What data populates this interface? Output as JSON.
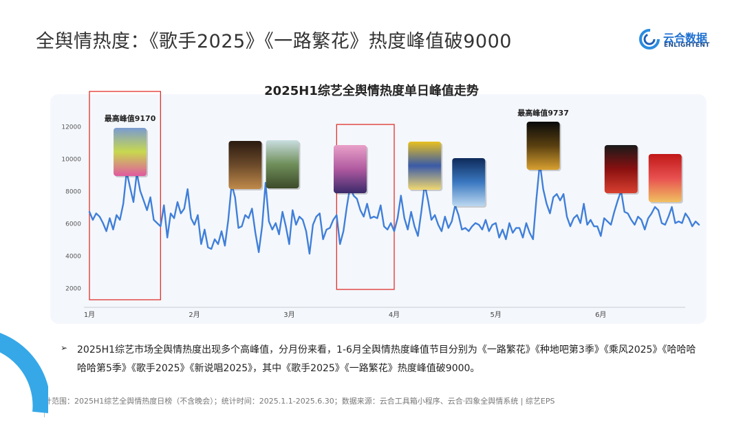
{
  "page": {
    "title": "全舆情热度：《歌手2025》《一路繁花》热度峰值破9000",
    "logo_cn": "云合数据",
    "logo_en": "ENLIGHTENT"
  },
  "chart_data": {
    "type": "line",
    "title": "2025H1综艺全舆情热度单日峰值走势",
    "xlabel": "",
    "ylabel": "",
    "y_ticks": [
      2000,
      4000,
      6000,
      8000,
      10000,
      12000
    ],
    "x_ticks": [
      "1月",
      "2月",
      "3月",
      "4月",
      "5月",
      "6月"
    ],
    "x_tick_days": [
      1,
      32,
      60,
      91,
      121,
      152
    ],
    "ylim": [
      1000,
      13000
    ],
    "xlim": [
      1,
      181
    ],
    "grid": false,
    "line_color": "#3f7fd9",
    "annotations": [
      {
        "label": "最高峰值9170",
        "day": 13
      },
      {
        "label": "最高峰值9737",
        "day": 135
      }
    ],
    "highlight_ranges": [
      [
        1,
        22
      ],
      [
        74,
        91
      ]
    ],
    "series": [
      {
        "name": "",
        "x": [
          1,
          2,
          3,
          4,
          5,
          6,
          7,
          8,
          9,
          10,
          11,
          12,
          13,
          14,
          15,
          16,
          17,
          18,
          19,
          20,
          21,
          22,
          23,
          24,
          25,
          26,
          27,
          28,
          29,
          30,
          31,
          32,
          33,
          34,
          35,
          36,
          37,
          38,
          39,
          40,
          41,
          42,
          43,
          44,
          45,
          46,
          47,
          48,
          49,
          50,
          51,
          52,
          53,
          54,
          55,
          56,
          57,
          58,
          59,
          60,
          61,
          62,
          63,
          64,
          65,
          66,
          67,
          68,
          69,
          70,
          71,
          72,
          73,
          74,
          75,
          76,
          77,
          78,
          79,
          80,
          81,
          82,
          83,
          84,
          85,
          86,
          87,
          88,
          89,
          90,
          91,
          92,
          93,
          94,
          95,
          96,
          97,
          98,
          99,
          100,
          101,
          102,
          103,
          104,
          105,
          106,
          107,
          108,
          109,
          110,
          111,
          112,
          113,
          114,
          115,
          116,
          117,
          118,
          119,
          120,
          121,
          122,
          123,
          124,
          125,
          126,
          127,
          128,
          129,
          130,
          131,
          132,
          133,
          134,
          135,
          136,
          137,
          138,
          139,
          140,
          141,
          142,
          143,
          144,
          145,
          146,
          147,
          148,
          149,
          150,
          151,
          152,
          153,
          154,
          155,
          156,
          157,
          158,
          159,
          160,
          161,
          162,
          163,
          164,
          165,
          166,
          167,
          168,
          169,
          170,
          171,
          172,
          173,
          174,
          175,
          176,
          177,
          178,
          179,
          180,
          181
        ],
        "values": [
          6700,
          6200,
          6600,
          6400,
          6000,
          5500,
          6300,
          5600,
          6500,
          6200,
          7200,
          9170,
          8200,
          7300,
          9100,
          8000,
          7400,
          6800,
          7600,
          6200,
          6000,
          5800,
          7100,
          5100,
          6600,
          6300,
          7300,
          6600,
          6900,
          8100,
          6300,
          5900,
          6500,
          4700,
          5600,
          4500,
          4400,
          5000,
          4700,
          5500,
          4600,
          6200,
          8400,
          7600,
          5700,
          5800,
          6500,
          6300,
          6900,
          5400,
          4200,
          5800,
          8500,
          6100,
          5600,
          6000,
          5300,
          6700,
          5800,
          4700,
          6800,
          5900,
          6400,
          6200,
          5500,
          4100,
          5900,
          6400,
          6600,
          5000,
          5600,
          5700,
          6200,
          6500,
          4700,
          5500,
          7000,
          8300,
          7700,
          7500,
          6800,
          6400,
          7200,
          6300,
          6400,
          6300,
          7100,
          5800,
          5600,
          6000,
          5500,
          6300,
          7700,
          6300,
          5600,
          6700,
          5800,
          5200,
          6700,
          8400,
          7400,
          6200,
          6500,
          5900,
          5500,
          6400,
          5700,
          6100,
          7100,
          6500,
          5600,
          5700,
          5500,
          5800,
          6000,
          5900,
          5600,
          6200,
          5500,
          5900,
          6000,
          5100,
          5600,
          5000,
          6000,
          5400,
          5700,
          5700,
          5100,
          6000,
          5400,
          5000,
          7500,
          9737,
          8100,
          7200,
          6600,
          7600,
          7800,
          7400,
          7800,
          6400,
          5800,
          6300,
          6500,
          6000,
          7200,
          5900,
          6200,
          5800,
          5800,
          5200,
          6300,
          6100,
          5900,
          6700,
          7400,
          8000,
          6700,
          6600,
          6200,
          5900,
          6400,
          6200,
          5600,
          6300,
          6600,
          7000,
          6800,
          6000,
          5900,
          6400,
          7000,
          6000,
          6100,
          6000,
          6600,
          6300,
          5800,
          6100,
          5900
        ]
      }
    ],
    "posters": [
      {
        "name": "一路繁花",
        "day": 13,
        "colors": [
          "#7a9bd1",
          "#c8d84e",
          "#e05aa0"
        ]
      },
      {
        "name": "poster-2",
        "day": 47,
        "colors": [
          "#2a1a10",
          "#6b4a2a",
          "#c08a4a"
        ]
      },
      {
        "name": "poster-3",
        "day": 58,
        "colors": [
          "#c8dde0",
          "#6f8f5a",
          "#3d4a2a"
        ]
      },
      {
        "name": "poster-4",
        "day": 78,
        "colors": [
          "#e8a0c8",
          "#b05aa0",
          "#3a2a6a"
        ]
      },
      {
        "name": "poster-5",
        "day": 100,
        "colors": [
          "#e8c020",
          "#3a5aa8",
          "#f0d870"
        ]
      },
      {
        "name": "poster-6",
        "day": 113,
        "colors": [
          "#0e2a5a",
          "#3a78c0",
          "#bcd8f0"
        ]
      },
      {
        "name": "歌手2025",
        "day": 135,
        "colors": [
          "#0a0a0a",
          "#5a4010",
          "#d8a030"
        ]
      },
      {
        "name": "poster-8",
        "day": 158,
        "colors": [
          "#1a1a1a",
          "#8a1010",
          "#d84030"
        ]
      },
      {
        "name": "poster-9",
        "day": 171,
        "colors": [
          "#c01818",
          "#e85050",
          "#f0c060"
        ]
      }
    ]
  },
  "footnote": {
    "bullet": "➢",
    "text": "2025H1综艺市场全舆情热度出现多个高峰值，分月份来看，1-6月全舆情热度峰值节目分别为《一路繁花》《种地吧第3季》《乘风2025》《哈哈哈哈哈第5季》《歌手2025》《新说唱2025》，其中《歌手2025》《一路繁花》热度峰值破9000。"
  },
  "source": "统计范围：2025H1综艺全舆情热度日榜（不含晚会）；统计时间：2025.1.1-2025.6.30；数据来源：云合工具箱小程序、云合·四象全舆情系统 | 综艺EPS"
}
